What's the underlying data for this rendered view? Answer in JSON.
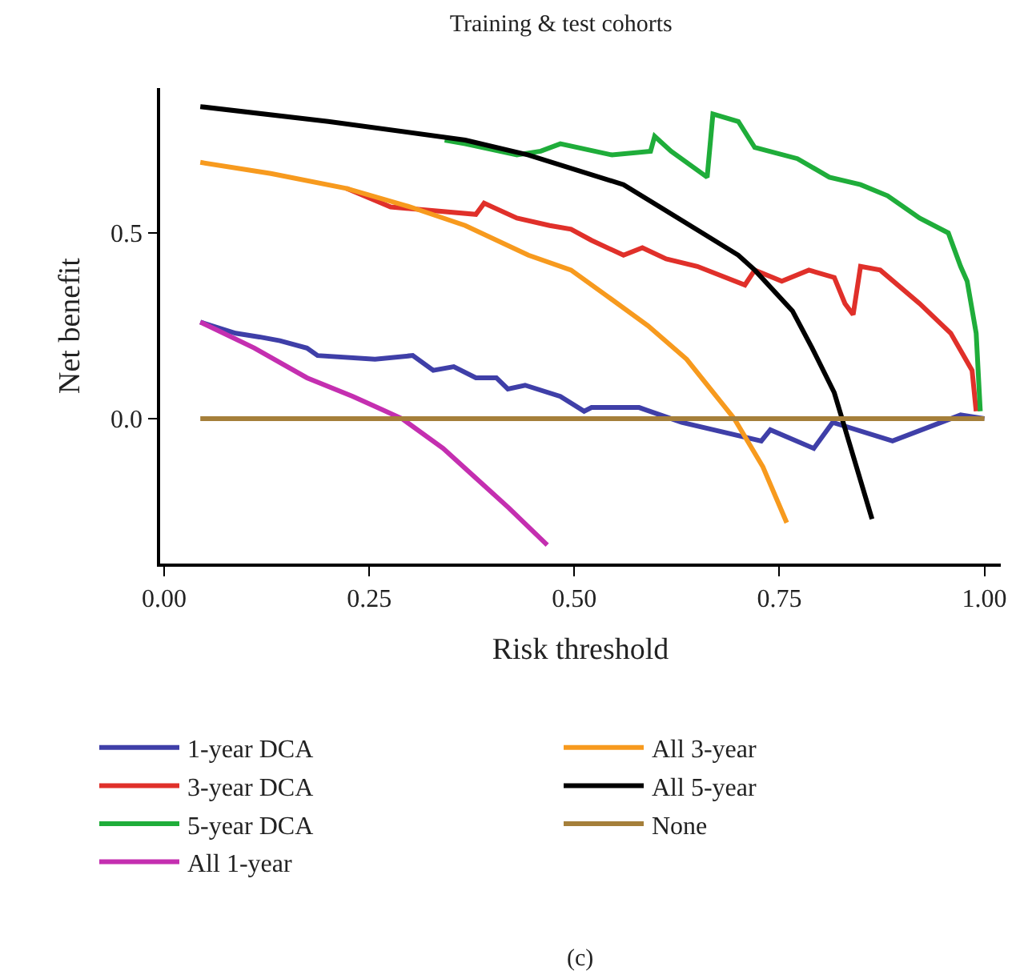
{
  "chart_data": {
    "type": "line",
    "title": "Training & test cohorts",
    "xlabel": "Risk threshold",
    "ylabel": "Net benefit",
    "xlim": [
      -0.005,
      1.02
    ],
    "ylim": [
      -0.39,
      0.89
    ],
    "xticks": [
      {
        "value": 0,
        "label": "0.00"
      },
      {
        "value": 0.25,
        "label": "0.25"
      },
      {
        "value": 0.5,
        "label": "0.50"
      },
      {
        "value": 0.75,
        "label": "0.75"
      },
      {
        "value": 1,
        "label": "1.00"
      }
    ],
    "yticks": [
      {
        "value": 0,
        "label": "0.0"
      },
      {
        "value": 0.5,
        "label": "0.5"
      }
    ],
    "grid": false,
    "legend": "bottom",
    "marker": "none",
    "line_style": "solid",
    "annotations": [
      "(c)"
    ],
    "series": [
      {
        "name": "1-year DCA",
        "color": "#3f3fa8",
        "x": [
          0.044,
          0.087,
          0.116,
          0.141,
          0.174,
          0.187,
          0.257,
          0.303,
          0.328,
          0.353,
          0.38,
          0.405,
          0.419,
          0.44,
          0.483,
          0.512,
          0.521,
          0.579,
          0.631,
          0.728,
          0.739,
          0.792,
          0.815,
          0.888,
          0.971,
          1.0
        ],
        "values": [
          0.26,
          0.23,
          0.22,
          0.21,
          0.19,
          0.17,
          0.16,
          0.17,
          0.13,
          0.14,
          0.11,
          0.11,
          0.08,
          0.09,
          0.06,
          0.02,
          0.03,
          0.03,
          -0.01,
          -0.06,
          -0.03,
          -0.08,
          -0.01,
          -0.06,
          0.01,
          0.0
        ]
      },
      {
        "name": "3-year DCA",
        "color": "#e0302a",
        "x": [
          0.222,
          0.276,
          0.38,
          0.39,
          0.43,
          0.47,
          0.496,
          0.521,
          0.56,
          0.583,
          0.612,
          0.65,
          0.708,
          0.72,
          0.753,
          0.786,
          0.817,
          0.83,
          0.84,
          0.849,
          0.873,
          0.921,
          0.959,
          0.985,
          0.99
        ],
        "values": [
          0.62,
          0.57,
          0.55,
          0.58,
          0.54,
          0.52,
          0.51,
          0.48,
          0.44,
          0.46,
          0.43,
          0.41,
          0.36,
          0.4,
          0.37,
          0.4,
          0.38,
          0.31,
          0.28,
          0.41,
          0.4,
          0.31,
          0.23,
          0.13,
          0.02
        ]
      },
      {
        "name": "5-year DCA",
        "color": "#1fad3a",
        "x": [
          0.342,
          0.367,
          0.43,
          0.459,
          0.483,
          0.546,
          0.593,
          0.598,
          0.618,
          0.662,
          0.669,
          0.7,
          0.72,
          0.772,
          0.811,
          0.849,
          0.882,
          0.921,
          0.956,
          0.971,
          0.979,
          0.99,
          0.995
        ],
        "values": [
          0.75,
          0.74,
          0.71,
          0.72,
          0.74,
          0.71,
          0.72,
          0.76,
          0.72,
          0.65,
          0.82,
          0.8,
          0.73,
          0.7,
          0.65,
          0.63,
          0.6,
          0.54,
          0.5,
          0.41,
          0.37,
          0.23,
          0.02
        ]
      },
      {
        "name": "All 1-year",
        "color": "#c42fb0",
        "x": [
          0.044,
          0.11,
          0.174,
          0.23,
          0.29,
          0.34,
          0.38,
          0.42,
          0.467
        ],
        "values": [
          0.26,
          0.19,
          0.11,
          0.06,
          0.0,
          -0.08,
          -0.16,
          -0.24,
          -0.34
        ]
      },
      {
        "name": "All 3-year",
        "color": "#f79a1e",
        "x": [
          0.044,
          0.13,
          0.222,
          0.3,
          0.367,
          0.444,
          0.496,
          0.54,
          0.59,
          0.637,
          0.695,
          0.73,
          0.759
        ],
        "values": [
          0.69,
          0.66,
          0.62,
          0.57,
          0.52,
          0.44,
          0.4,
          0.33,
          0.25,
          0.16,
          0.0,
          -0.13,
          -0.28
        ]
      },
      {
        "name": "All 5-year",
        "color": "#000000",
        "x": [
          0.044,
          0.2,
          0.367,
          0.444,
          0.56,
          0.656,
          0.7,
          0.72,
          0.766,
          0.79,
          0.817,
          0.84,
          0.863
        ],
        "values": [
          0.84,
          0.8,
          0.75,
          0.71,
          0.63,
          0.5,
          0.44,
          0.4,
          0.29,
          0.19,
          0.07,
          -0.1,
          -0.27
        ]
      },
      {
        "name": "None",
        "color": "#a57f3a",
        "x": [
          0.044,
          1.0
        ],
        "values": [
          0,
          0
        ]
      }
    ]
  }
}
